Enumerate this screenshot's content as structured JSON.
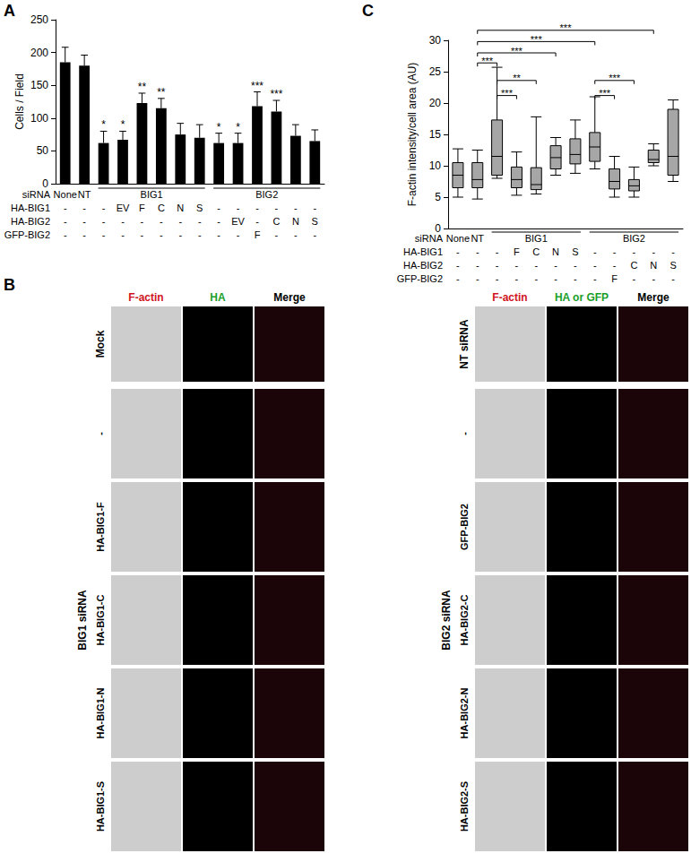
{
  "chart_data": [
    {
      "label": "A",
      "type": "bar",
      "y_label": "Cells / Field",
      "color": "#000000",
      "grid": false,
      "ylim": [
        0,
        250
      ],
      "yticks": [
        0,
        50,
        100,
        150,
        200,
        250
      ],
      "values": [
        185,
        180,
        62,
        67,
        123,
        115,
        75,
        70,
        62,
        62,
        118,
        110,
        73,
        65
      ],
      "errors": [
        23,
        16,
        18,
        13,
        15,
        15,
        17,
        20,
        15,
        15,
        22,
        17,
        17,
        17
      ],
      "significance": [
        null,
        null,
        "*",
        "*",
        "**",
        "**",
        null,
        null,
        "*",
        "*",
        "***",
        "***",
        null,
        null
      ],
      "x_rows": [
        {
          "name": "siRNA",
          "groups": [
            {
              "label": "None",
              "span": 1
            },
            {
              "label": "NT",
              "span": 1
            },
            {
              "label": "BIG1",
              "span": 6
            },
            {
              "label": "BIG2",
              "span": 6
            }
          ]
        },
        {
          "name": "HA-BIG1",
          "cells": [
            "-",
            "-",
            "-",
            "EV",
            "F",
            "C",
            "N",
            "S",
            "-",
            "-",
            "-",
            "-",
            "-",
            "-"
          ]
        },
        {
          "name": "HA-BIG2",
          "cells": [
            "-",
            "-",
            "-",
            "-",
            "-",
            "-",
            "-",
            "-",
            "-",
            "EV",
            "-",
            "C",
            "N",
            "S"
          ]
        },
        {
          "name": "GFP-BIG2",
          "cells": [
            "-",
            "-",
            "-",
            "-",
            "-",
            "-",
            "-",
            "-",
            "-",
            "-",
            "F",
            "-",
            "-",
            "-"
          ]
        }
      ]
    },
    {
      "label": "C",
      "type": "boxplot",
      "y_label": "F-actin intensity/cell area (AU)",
      "color": "#a6a6a6",
      "grid": false,
      "ylim": [
        0,
        30
      ],
      "yticks": [
        0,
        5,
        10,
        15,
        20,
        25,
        30
      ],
      "boxes": [
        [
          5,
          6.5,
          8.5,
          10.5,
          12.7
        ],
        [
          4.7,
          6.5,
          7.8,
          10.5,
          12.5
        ],
        [
          8,
          8.5,
          11.5,
          17.3,
          25.7
        ],
        [
          5.3,
          6.5,
          7.8,
          9.8,
          12.2
        ],
        [
          5.5,
          6.2,
          7,
          9.7,
          17.8
        ],
        [
          8.5,
          9.5,
          11.3,
          13.2,
          14.5
        ],
        [
          8.8,
          10.3,
          11.8,
          14.3,
          17.3
        ],
        [
          9.5,
          10.7,
          13,
          15.3,
          21
        ],
        [
          5,
          6.3,
          7.5,
          9.5,
          11.5
        ],
        [
          5,
          6,
          6.8,
          7.8,
          9.8
        ],
        [
          10,
          10.5,
          11,
          12.5,
          13.5
        ],
        [
          7.5,
          8.5,
          11.5,
          19,
          20.5
        ]
      ],
      "means": [
        8.5,
        8.3,
        13.2,
        8.2,
        8.7,
        11.7,
        12.6,
        13.6,
        8,
        7,
        11.4,
        13.7
      ],
      "comparisons": [
        {
          "from": 1,
          "to": 10,
          "y": 31.6,
          "label": "***"
        },
        {
          "from": 1,
          "to": 7,
          "y": 29.8,
          "label": "***"
        },
        {
          "from": 1,
          "to": 5,
          "y": 28.0,
          "label": "***"
        },
        {
          "from": 1,
          "to": 2,
          "y": 26.4,
          "label": "***"
        },
        {
          "from": 2,
          "to": 4,
          "y": 23.6,
          "label": "**"
        },
        {
          "from": 2,
          "to": 3,
          "y": 21.2,
          "label": "***"
        },
        {
          "from": 7,
          "to": 9,
          "y": 23.6,
          "label": "***"
        },
        {
          "from": 7,
          "to": 8,
          "y": 21.2,
          "label": "***"
        }
      ],
      "x_rows": [
        {
          "name": "siRNA",
          "groups": [
            {
              "label": "None",
              "span": 1
            },
            {
              "label": "NT",
              "span": 1
            },
            {
              "label": "BIG1",
              "span": 5
            },
            {
              "label": "BIG2",
              "span": 5
            }
          ]
        },
        {
          "name": "HA-BIG1",
          "cells": [
            "-",
            "-",
            "-",
            "F",
            "C",
            "N",
            "S",
            "-",
            "-",
            "-",
            "-",
            "-"
          ]
        },
        {
          "name": "HA-BIG2",
          "cells": [
            "-",
            "-",
            "-",
            "-",
            "-",
            "-",
            "-",
            "-",
            "-",
            "C",
            "N",
            "S"
          ]
        },
        {
          "name": "GFP-BIG2",
          "cells": [
            "-",
            "-",
            "-",
            "-",
            "-",
            "-",
            "-",
            "-",
            "F",
            "-",
            "-",
            "-"
          ]
        }
      ]
    }
  ],
  "panel_b": {
    "label": "B",
    "left": {
      "columns": [
        "F-actin",
        "HA",
        "Merge"
      ],
      "control": "Mock",
      "group": "BIG1 siRNA",
      "rows": [
        "-",
        "HA-BIG1-F",
        "HA-BIG1-C",
        "HA-BIG1-N",
        "HA-BIG1-S"
      ]
    },
    "right": {
      "columns": [
        "F-actin",
        "HA or GFP",
        "Merge"
      ],
      "control": "NT siRNA",
      "group": "BIG2 siRNA",
      "rows": [
        "-",
        "GFP-BIG2",
        "HA-BIG2-C",
        "HA-BIG2-N",
        "HA-BIG2-S"
      ]
    }
  }
}
